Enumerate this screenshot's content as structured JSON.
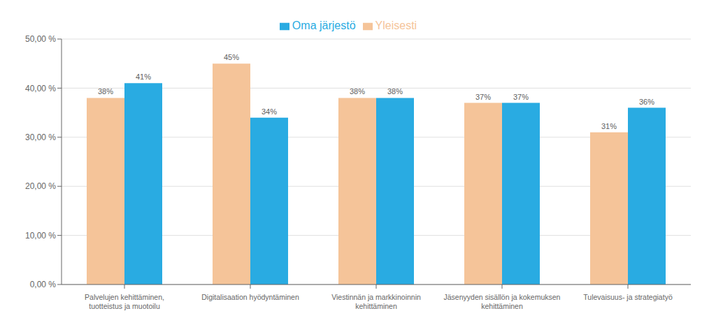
{
  "chart_data": {
    "type": "bar",
    "categories": [
      "Palvelujen kehittäminen,\ntuotteistus ja muotoilu",
      "Digitalisaation hyödyntäminen",
      "Viestinnän ja markkinoinnin\nkehittäminen",
      "Jäsenyyden sisällön ja kokemuksen\nkehittäminen",
      "Tulevaisuus- ja strategiatyö"
    ],
    "series": [
      {
        "name": "Yleisesti",
        "color": "#F5C499",
        "values": [
          38,
          45,
          38,
          37,
          31
        ],
        "value_labels": [
          "38%",
          "45%",
          "38%",
          "37%",
          "31%"
        ]
      },
      {
        "name": "Oma järjestö",
        "color": "#29ABE2",
        "values": [
          41,
          34,
          38,
          37,
          36
        ],
        "value_labels": [
          "41%",
          "34%",
          "38%",
          "37%",
          "36%"
        ]
      }
    ],
    "ylim": [
      0,
      50
    ],
    "yticks": [
      {
        "value": 0,
        "label": "0,00 %"
      },
      {
        "value": 10,
        "label": "10,00 %"
      },
      {
        "value": 20,
        "label": "20,00 %"
      },
      {
        "value": 30,
        "label": "30,00 %"
      },
      {
        "value": 40,
        "label": "40,00 %"
      },
      {
        "value": 50,
        "label": "50,00 %"
      }
    ],
    "grid": true,
    "data_labels": true,
    "legend": "top"
  }
}
